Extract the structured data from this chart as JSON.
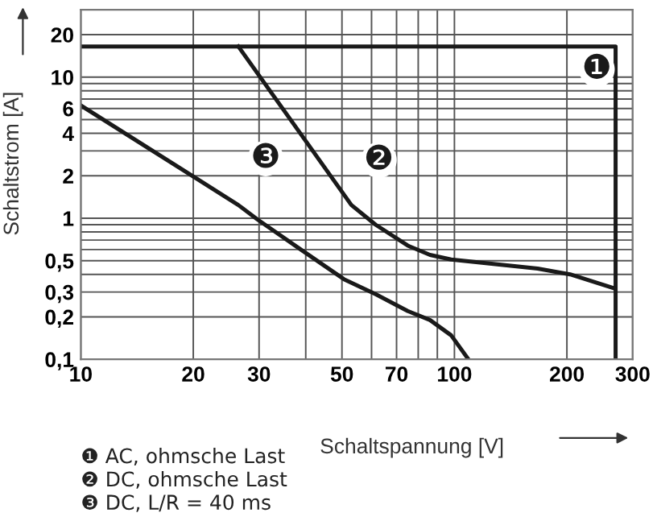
{
  "chart_data": {
    "type": "line",
    "xlabel": "Schaltspannung [V]",
    "ylabel": "Schaltstrom [A]",
    "log": "xy",
    "grid": true,
    "legend": false,
    "marker": "none",
    "line_style": "solid",
    "xlim": [
      10,
      300
    ],
    "ylim": [
      0.1,
      30
    ],
    "xticks": [
      10,
      20,
      30,
      {
        "value": 40,
        "label": null
      },
      50,
      {
        "value": 60,
        "label": null
      },
      70,
      {
        "value": 80,
        "label": null
      },
      {
        "value": 90,
        "label": null
      },
      100,
      200,
      300
    ],
    "yticks": [
      {
        "value": 0.1,
        "label": "0,1"
      },
      {
        "value": 0.2,
        "label": "0,2"
      },
      {
        "value": 0.3,
        "label": "0,3"
      },
      {
        "value": 0.4,
        "label": null
      },
      {
        "value": 0.5,
        "label": "0,5"
      },
      {
        "value": 0.6,
        "label": null
      },
      {
        "value": 0.7,
        "label": null
      },
      {
        "value": 0.8,
        "label": null
      },
      {
        "value": 0.9,
        "label": null
      },
      1,
      2,
      {
        "value": 3,
        "label": null
      },
      4,
      {
        "value": 5,
        "label": null
      },
      6,
      {
        "value": 7,
        "label": null
      },
      {
        "value": 8,
        "label": null
      },
      {
        "value": 9,
        "label": null
      },
      10,
      20
    ],
    "series": [
      {
        "color": "#1a1a1a",
        "x": [
          10,
          270,
          270
        ],
        "values": [
          16.5,
          16.5,
          0.1
        ]
      },
      {
        "color": "#1a1a1a",
        "x": [
          26.4,
          53,
          61.5,
          75,
          86,
          98,
          167,
          204,
          266
        ],
        "values": [
          16.5,
          1.24,
          0.9,
          0.64,
          0.55,
          0.51,
          0.44,
          0.4,
          0.32
        ]
      },
      {
        "color": "#1a1a1a",
        "x": [
          10,
          26.4,
          29.7,
          38.8,
          50.6,
          61.5,
          75,
          86,
          98,
          109
        ],
        "values": [
          6.3,
          1.24,
          0.98,
          0.6,
          0.37,
          0.29,
          0.22,
          0.19,
          0.148,
          0.1
        ]
      }
    ],
    "annotations": [
      "❶",
      "❷",
      "❸",
      "❶ AC, ohmsche Last",
      "❷ DC, ohmsche Last",
      "❸ DC, L/R = 40 ms"
    ]
  }
}
